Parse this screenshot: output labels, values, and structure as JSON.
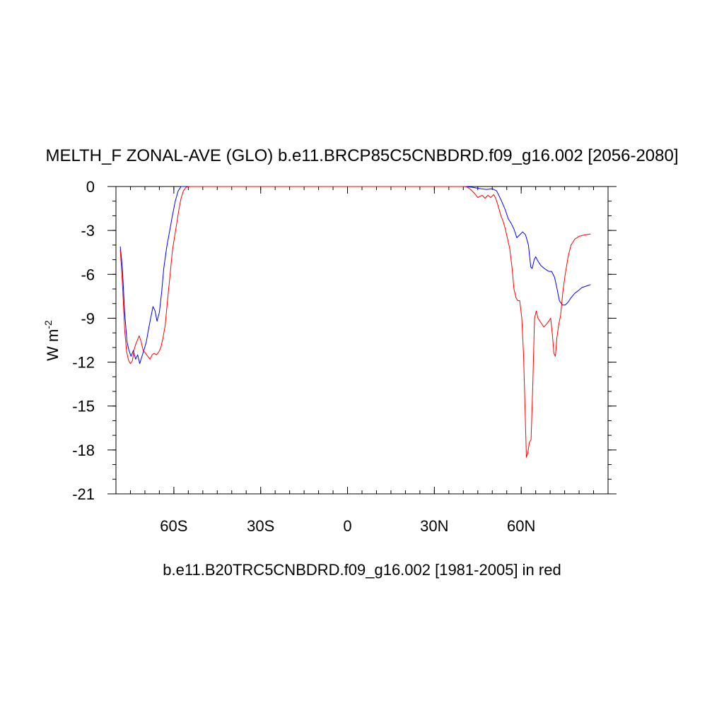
{
  "chart_data": {
    "type": "line",
    "title": "MELTH_F ZONAL-AVE (GLO) b.e11.BRCP85C5CNBDRD.f09_g16.002 [2056-2080]",
    "ylabel": "W m",
    "ylabel_superscript": "-2",
    "xlabel": "b.e11.B20TRC5CNBDRD.f09_g16.002 [1981-2005] in red",
    "xlim": [
      -80,
      90
    ],
    "ylim": [
      -21,
      0
    ],
    "x_ticks": [
      {
        "value": -60,
        "label": "60S"
      },
      {
        "value": -30,
        "label": "30S"
      },
      {
        "value": 0,
        "label": "0"
      },
      {
        "value": 30,
        "label": "30N"
      },
      {
        "value": 60,
        "label": "60N"
      }
    ],
    "y_ticks": [
      {
        "value": 0,
        "label": "0"
      },
      {
        "value": -3,
        "label": "-3"
      },
      {
        "value": -6,
        "label": "-6"
      },
      {
        "value": -9,
        "label": "-9"
      },
      {
        "value": -12,
        "label": "-12"
      },
      {
        "value": -15,
        "label": "-15"
      },
      {
        "value": -18,
        "label": "-18"
      },
      {
        "value": -21,
        "label": "-21"
      }
    ],
    "grid": false,
    "colors": {
      "series_future": "#0000ff",
      "series_historical": "#ff0000"
    },
    "series": [
      {
        "color": "#0000ff",
        "points": [
          [
            -78.5,
            -4.1
          ],
          [
            -77.8,
            -5.5
          ],
          [
            -77,
            -8.6
          ],
          [
            -76.2,
            -10.6
          ],
          [
            -75.5,
            -11.2
          ],
          [
            -74.8,
            -11.6
          ],
          [
            -74,
            -11.2
          ],
          [
            -73.2,
            -11.8
          ],
          [
            -72.5,
            -11.5
          ],
          [
            -71.8,
            -12.1
          ],
          [
            -71,
            -11.6
          ],
          [
            -70.2,
            -11.1
          ],
          [
            -69.5,
            -10.6
          ],
          [
            -68.8,
            -9.8
          ],
          [
            -68,
            -9.0
          ],
          [
            -67.2,
            -8.2
          ],
          [
            -66.5,
            -8.5
          ],
          [
            -65.8,
            -9.2
          ],
          [
            -65,
            -8.6
          ],
          [
            -64.2,
            -7.2
          ],
          [
            -63.5,
            -5.6
          ],
          [
            -62.5,
            -4.2
          ],
          [
            -61.5,
            -3.1
          ],
          [
            -60.5,
            -2.0
          ],
          [
            -59.5,
            -1.0
          ],
          [
            -58.5,
            -0.3
          ],
          [
            -57.5,
            0
          ],
          [
            -56,
            0
          ],
          [
            40,
            0
          ],
          [
            43,
            -0.05
          ],
          [
            46,
            -0.15
          ],
          [
            48,
            -0.2
          ],
          [
            50,
            -0.15
          ],
          [
            51.5,
            -0.3
          ],
          [
            53,
            -0.9
          ],
          [
            54.5,
            -1.6
          ],
          [
            55.5,
            -2.2
          ],
          [
            56.5,
            -2.5
          ],
          [
            57.5,
            -2.9
          ],
          [
            58.5,
            -3.5
          ],
          [
            59.5,
            -3.3
          ],
          [
            60.5,
            -3.1
          ],
          [
            61.5,
            -3.3
          ],
          [
            62.5,
            -4.0
          ],
          [
            63.3,
            -5.5
          ],
          [
            63.8,
            -5.6
          ],
          [
            64.5,
            -5.0
          ],
          [
            65,
            -4.8
          ],
          [
            65.8,
            -5.1
          ],
          [
            66.8,
            -5.4
          ],
          [
            68,
            -5.6
          ],
          [
            69.5,
            -5.8
          ],
          [
            70.5,
            -5.8
          ],
          [
            71.5,
            -6.2
          ],
          [
            72.3,
            -6.9
          ],
          [
            73.2,
            -7.8
          ],
          [
            74.2,
            -8.1
          ],
          [
            75.2,
            -8.1
          ],
          [
            76.2,
            -7.9
          ],
          [
            77.2,
            -7.6
          ],
          [
            78.5,
            -7.3
          ],
          [
            79.8,
            -7.1
          ],
          [
            81,
            -6.9
          ],
          [
            82.5,
            -6.8
          ],
          [
            84,
            -6.7
          ]
        ]
      },
      {
        "color": "#ff0000",
        "points": [
          [
            -78.5,
            -4.3
          ],
          [
            -77.8,
            -6.5
          ],
          [
            -77,
            -9.8
          ],
          [
            -76.3,
            -11.3
          ],
          [
            -75.6,
            -11.9
          ],
          [
            -75,
            -12.1
          ],
          [
            -74.3,
            -11.9
          ],
          [
            -73.8,
            -11.2
          ],
          [
            -73.2,
            -10.8
          ],
          [
            -72.6,
            -10.5
          ],
          [
            -72,
            -10.2
          ],
          [
            -71.3,
            -10.6
          ],
          [
            -70.6,
            -11.2
          ],
          [
            -69.8,
            -11.4
          ],
          [
            -69,
            -11.6
          ],
          [
            -68.2,
            -11.8
          ],
          [
            -67.5,
            -11.5
          ],
          [
            -66.8,
            -11.4
          ],
          [
            -66,
            -11.5
          ],
          [
            -65.2,
            -11.3
          ],
          [
            -64.5,
            -11.0
          ],
          [
            -63.8,
            -10.4
          ],
          [
            -63,
            -9.5
          ],
          [
            -62.2,
            -7.8
          ],
          [
            -61.3,
            -6.0
          ],
          [
            -60.5,
            -4.4
          ],
          [
            -59.8,
            -3.5
          ],
          [
            -59,
            -2.5
          ],
          [
            -58.2,
            -1.5
          ],
          [
            -57.5,
            -0.8
          ],
          [
            -56.7,
            -0.3
          ],
          [
            -55.8,
            -0.05
          ],
          [
            -54.5,
            0
          ],
          [
            -52,
            0
          ],
          [
            41,
            0
          ],
          [
            42.5,
            -0.2
          ],
          [
            44,
            -0.5
          ],
          [
            45,
            -0.75
          ],
          [
            46.5,
            -0.6
          ],
          [
            47.5,
            -0.8
          ],
          [
            48.5,
            -0.6
          ],
          [
            49.5,
            -0.75
          ],
          [
            50.5,
            -0.55
          ],
          [
            51.2,
            -0.8
          ],
          [
            52,
            -1.3
          ],
          [
            53,
            -2.0
          ],
          [
            53.8,
            -2.4
          ],
          [
            54.5,
            -2.9
          ],
          [
            55.2,
            -3.5
          ],
          [
            56,
            -4.2
          ],
          [
            56.8,
            -5.5
          ],
          [
            57.5,
            -7.0
          ],
          [
            58.2,
            -7.6
          ],
          [
            58.8,
            -7.8
          ],
          [
            59.5,
            -7.8
          ],
          [
            60.2,
            -9.0
          ],
          [
            60.8,
            -11.5
          ],
          [
            61.3,
            -15.0
          ],
          [
            61.8,
            -18.5
          ],
          [
            62.3,
            -18.2
          ],
          [
            62.8,
            -17.5
          ],
          [
            63.4,
            -17.3
          ],
          [
            64,
            -13.5
          ],
          [
            64.6,
            -9.0
          ],
          [
            65.2,
            -8.5
          ],
          [
            65.8,
            -9.0
          ],
          [
            66.8,
            -9.3
          ],
          [
            67.8,
            -9.6
          ],
          [
            68.8,
            -9.4
          ],
          [
            69.5,
            -9.2
          ],
          [
            70.2,
            -9.0
          ],
          [
            70.8,
            -10.2
          ],
          [
            71.3,
            -11.4
          ],
          [
            71.8,
            -11.6
          ],
          [
            72.3,
            -10.4
          ],
          [
            72.9,
            -9.5
          ],
          [
            73.6,
            -8.8
          ],
          [
            74.4,
            -7.2
          ],
          [
            75.2,
            -6.0
          ],
          [
            76.2,
            -4.8
          ],
          [
            77.2,
            -4.0
          ],
          [
            78.5,
            -3.6
          ],
          [
            80,
            -3.4
          ],
          [
            82,
            -3.3
          ],
          [
            84,
            -3.25
          ]
        ]
      }
    ]
  }
}
